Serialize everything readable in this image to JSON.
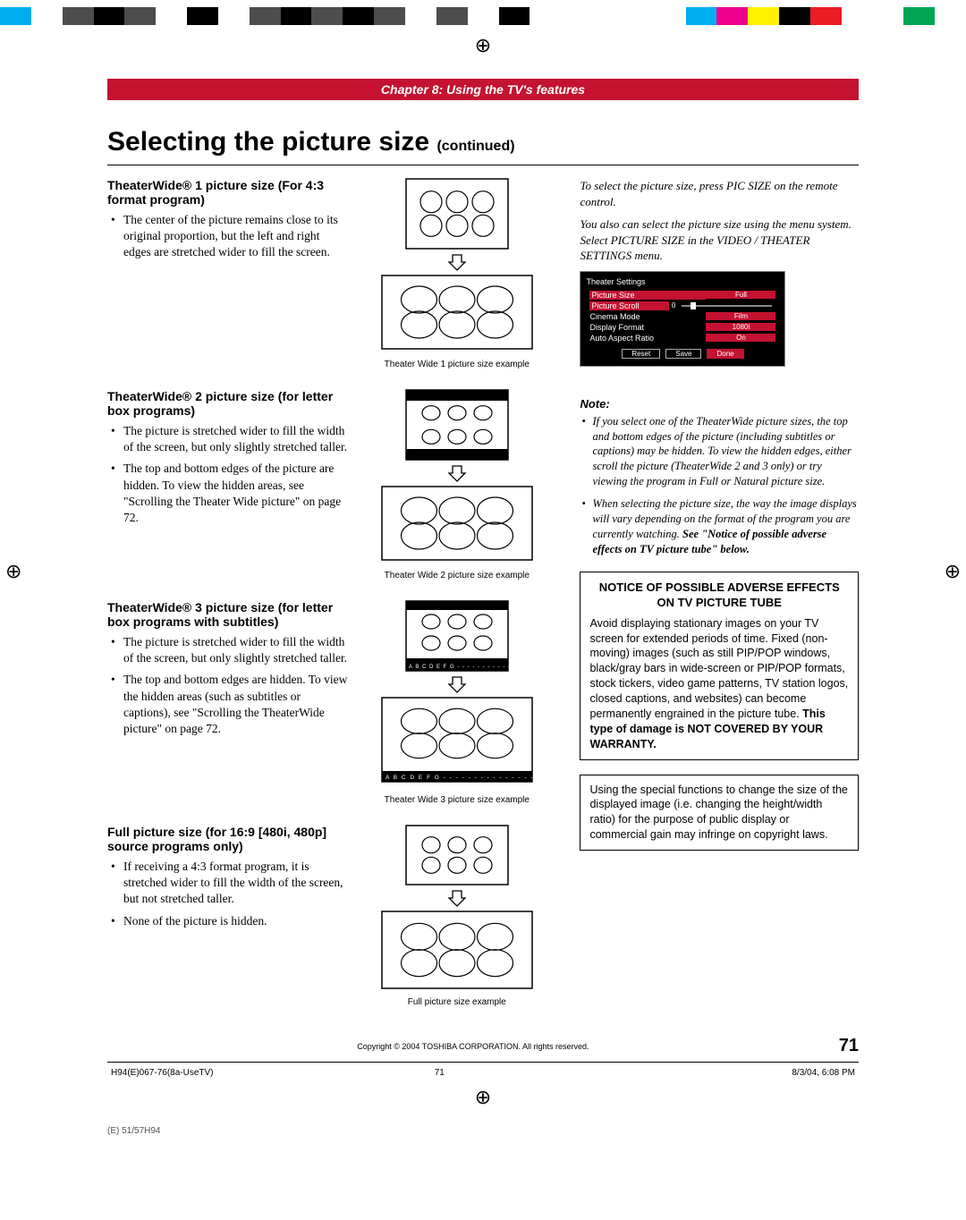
{
  "colorbar": [
    "#00aeef",
    "#ffffff",
    "#4d4d4d",
    "#000000",
    "#4d4d4d",
    "#ffffff",
    "#000000",
    "#ffffff",
    "#4d4d4d",
    "#000000",
    "#4d4d4d",
    "#000000",
    "#4d4d4d",
    "#ffffff",
    "#4d4d4d",
    "#ffffff",
    "#000000",
    "#ffffff",
    "#ffffff",
    "#ffffff",
    "#ffffff",
    "#ffffff",
    "#00aeef",
    "#ec008c",
    "#fff200",
    "#000000",
    "#ed1c24",
    "#ffffff",
    "#ffffff",
    "#00a651",
    "#ffffff"
  ],
  "chapter": "Chapter 8: Using the TV's features",
  "title_main": "Selecting the picture size",
  "title_cont": "(continued)",
  "sections": [
    {
      "heading": "TheaterWide® 1 picture size (For 4:3 format program)",
      "bullets": [
        "The center of the picture remains close to its original proportion, but the left and right edges are stretched wider to fill the screen."
      ],
      "caption": "Theater Wide 1 picture size example",
      "fig": "tw1"
    },
    {
      "heading": "TheaterWide® 2 picture size (for letter box programs)",
      "bullets": [
        "The picture is stretched wider to fill the width of the screen, but only slightly stretched taller.",
        "The top and bottom edges of the picture are hidden. To view the hidden areas, see \"Scrolling the Theater Wide picture\" on page 72."
      ],
      "caption": "Theater Wide 2 picture size example",
      "fig": "tw2"
    },
    {
      "heading": "TheaterWide® 3 picture size (for letter box programs with subtitles)",
      "bullets": [
        "The picture is stretched wider to fill the width of the screen, but only slightly stretched taller.",
        "The top and bottom edges are hidden. To view the hidden areas (such as subtitles or captions), see \"Scrolling the TheaterWide picture\" on page 72."
      ],
      "caption": "Theater Wide 3 picture size example",
      "fig": "tw3"
    },
    {
      "heading": "Full picture size (for 16:9 [480i, 480p] source programs only)",
      "bullets": [
        "If receiving a 4:3 format program, it is stretched wider to fill the width of the screen, but not stretched taller.",
        "None of the picture is hidden."
      ],
      "caption": "Full picture size example",
      "fig": "full"
    }
  ],
  "right_intro": [
    "To select the picture size, press PIC SIZE on the remote control.",
    "You also can select the picture size using the menu system. Select PICTURE SIZE in the VIDEO / THEATER SETTINGS menu."
  ],
  "menu": {
    "title": "Theater Settings",
    "rows": [
      {
        "label": "Picture Size",
        "value": "Full",
        "type": "pill",
        "selected": true
      },
      {
        "label": "Picture Scroll",
        "value": "0",
        "type": "slider",
        "selected": true
      },
      {
        "label": "Cinema Mode",
        "value": "Film",
        "type": "pill"
      },
      {
        "label": "Display Format",
        "value": "1080i",
        "type": "pill"
      },
      {
        "label": "Auto Aspect Ratio",
        "value": "On",
        "type": "pill"
      }
    ],
    "buttons": [
      "Reset",
      "Save",
      "Done"
    ]
  },
  "note_title": "Note:",
  "note_items": [
    {
      "t": "If you select one of the TheaterWide picture sizes, the top and bottom edges of the picture (including subtitles or captions) may be hidden. To view the hidden edges, either scroll the picture (TheaterWide 2 and 3 only) or try viewing the program in Full or Natural picture size."
    },
    {
      "t": "When selecting the picture size, the way the image displays will vary depending on the format of the program you are currently watching. ",
      "bold": "See \"Notice of possible adverse effects on TV picture tube\" below."
    }
  ],
  "notice": {
    "title": "NOTICE OF POSSIBLE ADVERSE EFFECTS ON TV PICTURE TUBE",
    "body_pre": "Avoid displaying stationary images on your TV screen for extended periods of time. Fixed (non-moving) images (such as still PIP/POP windows, black/gray bars in wide-screen or PIP/POP formats, stock tickers, video game patterns, TV station logos, closed captions, and websites) can become permanently engrained in the picture tube. ",
    "body_bold": "This type of damage is NOT COVERED BY YOUR WARRANTY."
  },
  "copyright_box": "Using the special functions to change the size of the displayed image (i.e. changing the height/width ratio) for the purpose of public display or commercial gain may infringe on copyright laws.",
  "copyright_line": "Copyright © 2004 TOSHIBA CORPORATION. All rights reserved.",
  "page_number": "71",
  "meta": {
    "file": "H94(E)067-76(8a-UseTV)",
    "page": "71",
    "date": "8/3/04, 6:08 PM"
  },
  "footer_file": "(E) 51/57H94",
  "svg": {
    "subtitle_letters": "A B C D E F G"
  }
}
